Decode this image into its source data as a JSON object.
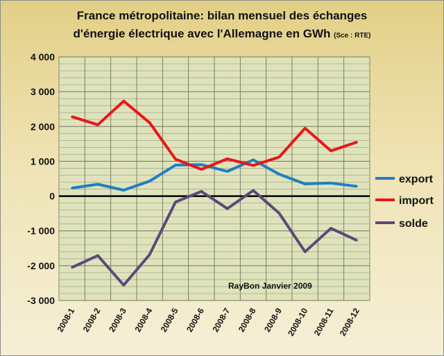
{
  "chart_data": {
    "type": "line",
    "title_line1": "France métropolitaine:  bilan mensuel  des échanges",
    "title_line2": "d'énergie électrique avec l'Allemagne  en GWh",
    "source": "(Sce : RTE)",
    "watermark": "RayBon Janvier 2009",
    "xlabel": "",
    "ylabel": "",
    "ylim": [
      -3000,
      4000
    ],
    "yticks": [
      4000,
      3000,
      2000,
      1000,
      0,
      -1000,
      -2000,
      -3000
    ],
    "ytick_labels": [
      "4 000",
      "3 000",
      "2 000",
      "1 000",
      "0",
      "-1 000",
      "-2 000",
      "-3 000"
    ],
    "grid": true,
    "legend_position": "right",
    "categories": [
      "2008-1",
      "2008-2",
      "2008-3",
      "2008-4",
      "2008-5",
      "2008-6",
      "2008-7",
      "2008-8",
      "2008-9",
      "2008-10",
      "2008-11",
      "2008-12"
    ],
    "series": [
      {
        "name": "export",
        "color": "#1f7fc0",
        "values": [
          230,
          340,
          170,
          430,
          890,
          905,
          710,
          1040,
          630,
          350,
          375,
          280
        ]
      },
      {
        "name": "import",
        "color": "#e8161b",
        "values": [
          2280,
          2050,
          2730,
          2110,
          1060,
          770,
          1070,
          880,
          1120,
          1950,
          1300,
          1550
        ]
      },
      {
        "name": "solde",
        "color": "#5a4a78",
        "values": [
          -2050,
          -1710,
          -2560,
          -1680,
          -170,
          135,
          -360,
          160,
          -490,
          -1600,
          -925,
          -1270
        ]
      }
    ]
  }
}
